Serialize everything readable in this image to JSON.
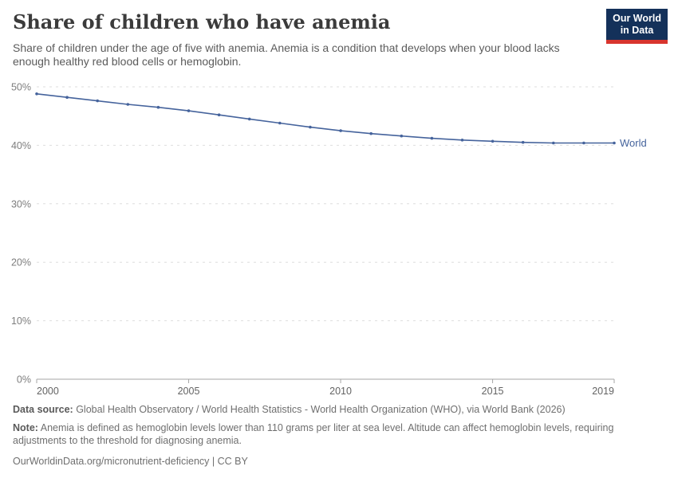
{
  "header": {
    "title": "Share of children who have anemia",
    "subtitle": "Share of children under the age of five with anemia. Anemia is a condition that develops when your blood lacks enough healthy red blood cells or hemoglobin.",
    "logo": {
      "line1": "Our World",
      "line2": "in Data"
    }
  },
  "chart_data": {
    "type": "line",
    "title": "Share of children who have anemia",
    "x": [
      2000,
      2001,
      2002,
      2003,
      2004,
      2005,
      2006,
      2007,
      2008,
      2009,
      2010,
      2011,
      2012,
      2013,
      2014,
      2015,
      2016,
      2017,
      2018,
      2019
    ],
    "series": [
      {
        "name": "World",
        "values": [
          48.8,
          48.2,
          47.6,
          47.0,
          46.5,
          45.9,
          45.2,
          44.5,
          43.8,
          43.1,
          42.5,
          42.0,
          41.6,
          41.2,
          40.9,
          40.7,
          40.5,
          40.4,
          40.4,
          40.4
        ]
      }
    ],
    "xlabel": "",
    "ylabel": "",
    "ylim": [
      0,
      50
    ],
    "yticks": [
      0,
      10,
      20,
      30,
      40,
      50
    ],
    "ytick_suffix": "%",
    "xticks": [
      2000,
      2005,
      2010,
      2015,
      2019
    ],
    "grid": "dashed-horizontal",
    "legend": "end-of-line-label"
  },
  "footer": {
    "datasource_label": "Data source:",
    "datasource_text": " Global Health Observatory / World Health Statistics - World Health Organization (WHO), via World Bank (2026)",
    "note_label": "Note:",
    "note_text": " Anemia is defined as hemoglobin levels lower than 110 grams per liter at sea level. Altitude can affect hemoglobin levels, requiring adjustments to the threshold for diagnosing anemia.",
    "link": "OurWorldinData.org/micronutrient-deficiency | CC BY"
  },
  "colors": {
    "line": "#45639c",
    "gridline": "#dedede",
    "axis": "#a5a5a5",
    "y_tick_label": "#7e7e7e",
    "x_tick_label": "#636363",
    "logo_bg": "#14315a",
    "logo_red": "#d8352e"
  }
}
